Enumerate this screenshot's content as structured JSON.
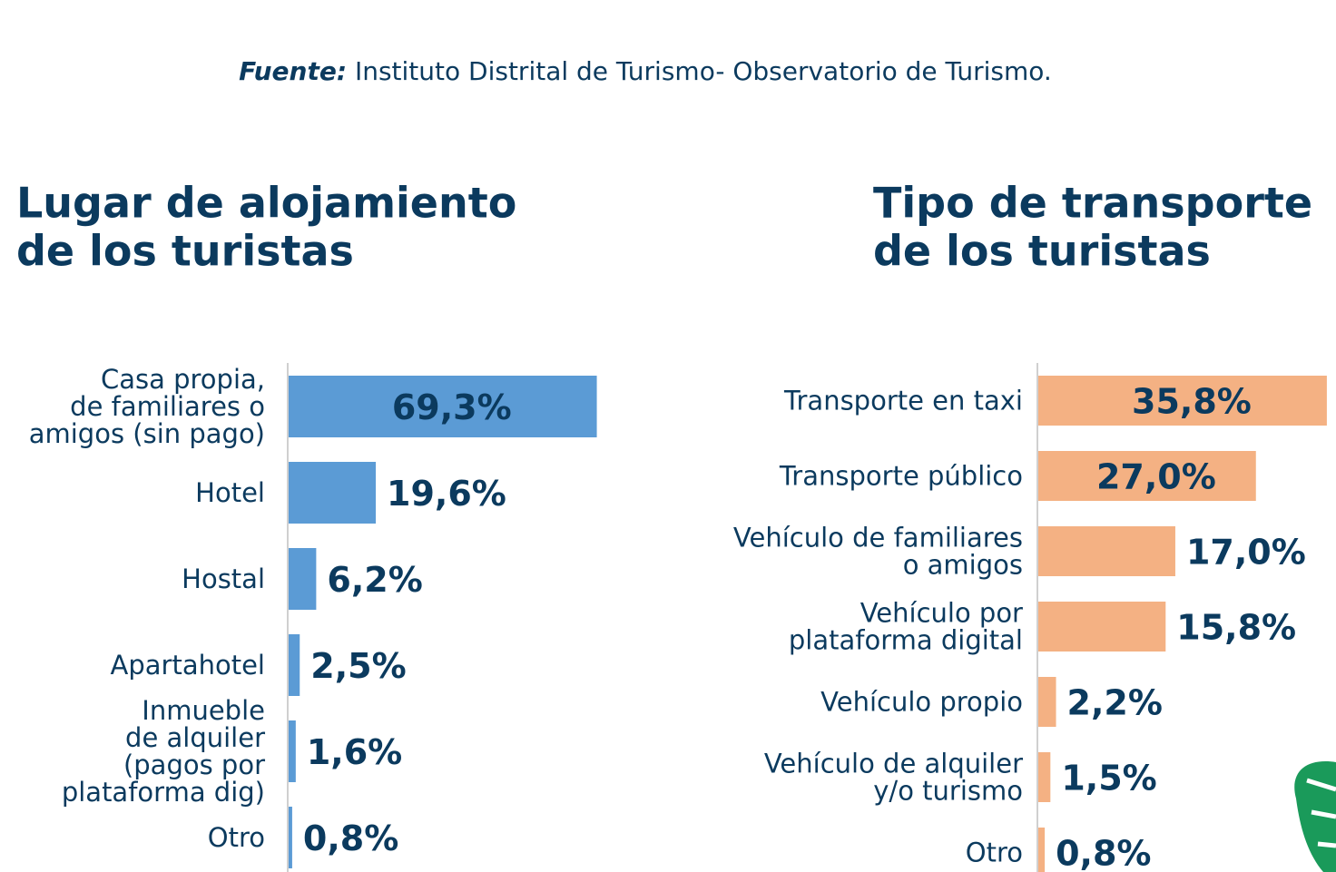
{
  "source": {
    "label": "Fuente:",
    "text": "Instituto Distrital de Turismo- Observatorio de Turismo."
  },
  "chart_data": [
    {
      "type": "bar",
      "orientation": "horizontal",
      "title": "Lugar de alojamiento\nde los turistas",
      "categories": [
        "Casa propia,\nde familiares o\namigos (sin pago)",
        "Hotel",
        "Hostal",
        "Apartahotel",
        "Inmueble\nde alquiler\n(pagos por\nplataforma dig)",
        "Otro"
      ],
      "values": [
        69.3,
        19.6,
        6.2,
        2.5,
        1.6,
        0.8
      ],
      "value_labels": [
        "69,3%",
        "19,6%",
        "6,2%",
        "2,5%",
        "1,6%",
        "0,8%"
      ],
      "color": "#5b9bd5"
    },
    {
      "type": "bar",
      "orientation": "horizontal",
      "title": "Tipo de transporte\nde los turistas",
      "categories": [
        "Transporte en taxi",
        "Transporte público",
        "Vehículo de familiares\no amigos",
        "Vehículo por\nplataforma digital",
        "Vehículo propio",
        "Vehículo de alquiler\ny/o turismo",
        "Otro"
      ],
      "values": [
        35.8,
        27.0,
        17.0,
        15.8,
        2.2,
        1.5,
        0.8
      ],
      "value_labels": [
        "35,8%",
        "27,0%",
        "17,0%",
        "15,8%",
        "2,2%",
        "1,5%",
        "0,8%"
      ],
      "color": "#f4b183"
    }
  ]
}
